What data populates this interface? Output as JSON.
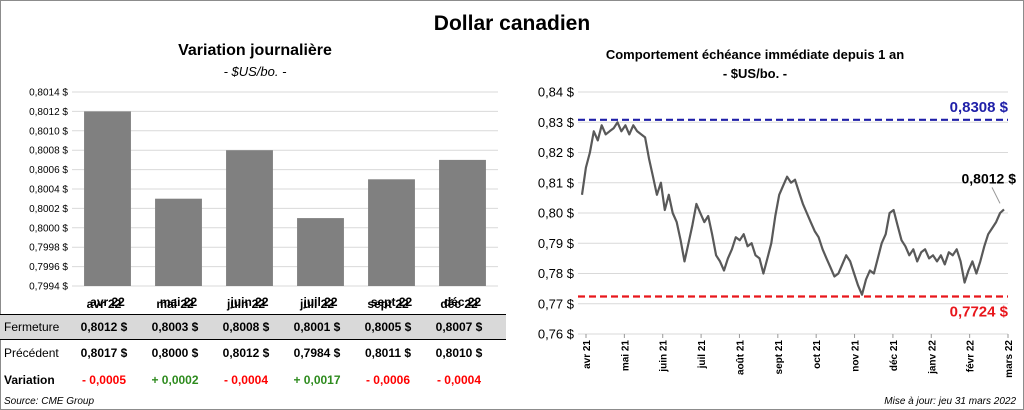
{
  "title": "Dollar canadien",
  "left_chart": {
    "title": "Variation  journalière",
    "subtitle": "- $US/bo. -"
  },
  "right_chart": {
    "title": "Comportement échéance immédiate depuis 1 an",
    "subtitle": "- $US/bo. -"
  },
  "table": {
    "headers": [
      "avr 22",
      "mai 22",
      "juin 22",
      "juil 22",
      "sept 22",
      "déc 22"
    ],
    "rows": [
      {
        "label": "Fermeture",
        "values": [
          "0,8012  $",
          "0,8003  $",
          "0,8008  $",
          "0,8001  $",
          "0,8005  $",
          "0,8007  $"
        ]
      },
      {
        "label": "Précédent",
        "values": [
          "0,8017  $",
          "0,8000  $",
          "0,8012  $",
          "0,7984  $",
          "0,8011  $",
          "0,8010  $"
        ]
      },
      {
        "label": "Variation",
        "values": [
          "- 0,0005",
          "+ 0,0002",
          "- 0,0004",
          "+ 0,0017",
          "- 0,0006",
          "- 0,0004"
        ],
        "colors": [
          "neg",
          "pos",
          "neg",
          "pos",
          "neg",
          "neg"
        ]
      }
    ]
  },
  "footer": {
    "source": "Source: CME Group",
    "updated": "Mise à jour: jeu 31 mars 2022"
  },
  "chart_data": [
    {
      "type": "bar",
      "categories": [
        "avr 22",
        "mai 22",
        "juin 22",
        "juil 22",
        "sept 22",
        "déc 22"
      ],
      "values": [
        0.8012,
        0.8003,
        0.8008,
        0.8001,
        0.8005,
        0.8007
      ],
      "ylim": [
        0.7994,
        0.8014
      ],
      "yticks": [
        "0,7994 $",
        "0,7996 $",
        "0,7998 $",
        "0,8000 $",
        "0,8002 $",
        "0,8004 $",
        "0,8006 $",
        "0,8008 $",
        "0,8010 $",
        "0,8012 $",
        "0,8014 $"
      ],
      "color": "#808080",
      "grid": true
    },
    {
      "type": "line",
      "ylim": [
        0.76,
        0.84
      ],
      "yticks": [
        "0,76 $",
        "0,77 $",
        "0,78 $",
        "0,79 $",
        "0,80 $",
        "0,81 $",
        "0,82 $",
        "0,83 $",
        "0,84 $"
      ],
      "xticks": [
        "avr 21",
        "mai 21",
        "juin 21",
        "juil 21",
        "août 21",
        "sept 21",
        "oct 21",
        "nov 21",
        "déc 21",
        "janv 22",
        "févr 22",
        "mars 22"
      ],
      "values": [
        0.806,
        0.815,
        0.82,
        0.827,
        0.824,
        0.829,
        0.826,
        0.827,
        0.828,
        0.83,
        0.827,
        0.829,
        0.826,
        0.829,
        0.827,
        0.826,
        0.825,
        0.818,
        0.812,
        0.806,
        0.81,
        0.801,
        0.806,
        0.8,
        0.797,
        0.791,
        0.784,
        0.79,
        0.796,
        0.803,
        0.8,
        0.797,
        0.799,
        0.793,
        0.786,
        0.784,
        0.781,
        0.785,
        0.788,
        0.792,
        0.791,
        0.793,
        0.789,
        0.79,
        0.786,
        0.785,
        0.78,
        0.785,
        0.79,
        0.799,
        0.806,
        0.809,
        0.812,
        0.81,
        0.811,
        0.807,
        0.803,
        0.8,
        0.797,
        0.794,
        0.792,
        0.788,
        0.785,
        0.782,
        0.779,
        0.78,
        0.783,
        0.786,
        0.784,
        0.78,
        0.776,
        0.773,
        0.778,
        0.781,
        0.78,
        0.785,
        0.79,
        0.793,
        0.8,
        0.801,
        0.796,
        0.791,
        0.789,
        0.786,
        0.788,
        0.784,
        0.787,
        0.788,
        0.785,
        0.786,
        0.784,
        0.786,
        0.783,
        0.787,
        0.786,
        0.788,
        0.784,
        0.777,
        0.781,
        0.784,
        0.78,
        0.784,
        0.789,
        0.793,
        0.795,
        0.797,
        0.8,
        0.8012
      ],
      "annotations": {
        "high": {
          "value": 0.8308,
          "label": "0,8308  $",
          "color": "#1f1fa8"
        },
        "low": {
          "value": 0.7724,
          "label": "0,7724  $",
          "color": "#e8161b"
        },
        "last": {
          "value": 0.8012,
          "label": "0,8012 $"
        }
      },
      "color": "#595959",
      "grid": true
    }
  ]
}
